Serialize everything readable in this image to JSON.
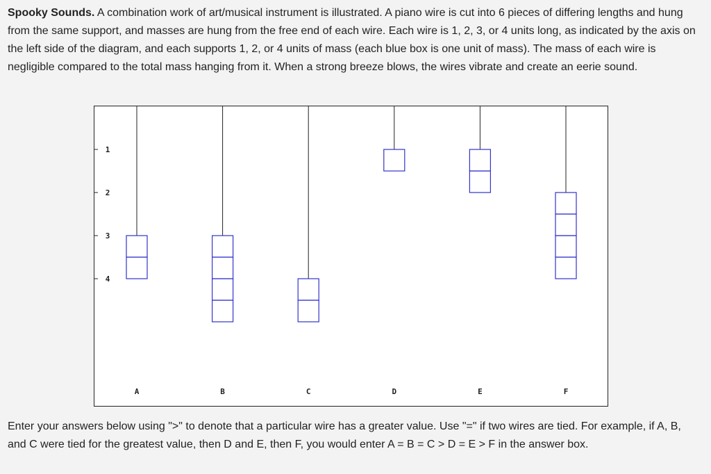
{
  "intro": {
    "title": "Spooky Sounds.",
    "text": " A combination work of art/musical instrument is illustrated. A piano wire is cut into 6 pieces of differing lengths and hung from the same support, and masses are hung from the free end of each wire. Each wire is 1, 2, 3, or 4 units long, as indicated by the axis on the left side of the diagram, and each supports 1, 2, or 4 units of mass (each blue box is one unit of mass). The mass of each wire is negligible compared to the total mass hanging from it. When a strong breeze blows, the wires vibrate and create an eerie sound."
  },
  "outro": {
    "text": "Enter your answers below using \">\" to denote that a particular wire has a greater value. Use \"=\" if two wires are tied. For example, if A, B, and C were tied for the greatest value, then D and E, then F, you would enter A = B = C > D = E > F in the answer box."
  },
  "diagram": {
    "axis_ticks": [
      "1",
      "2",
      "3",
      "4"
    ],
    "box_color": "#3333cc",
    "wires": [
      {
        "label": "A",
        "length": 3,
        "mass": 2
      },
      {
        "label": "B",
        "length": 3,
        "mass": 4
      },
      {
        "label": "C",
        "length": 4,
        "mass": 2
      },
      {
        "label": "D",
        "length": 1,
        "mass": 1
      },
      {
        "label": "E",
        "length": 1,
        "mass": 2
      },
      {
        "label": "F",
        "length": 2,
        "mass": 4
      }
    ]
  }
}
